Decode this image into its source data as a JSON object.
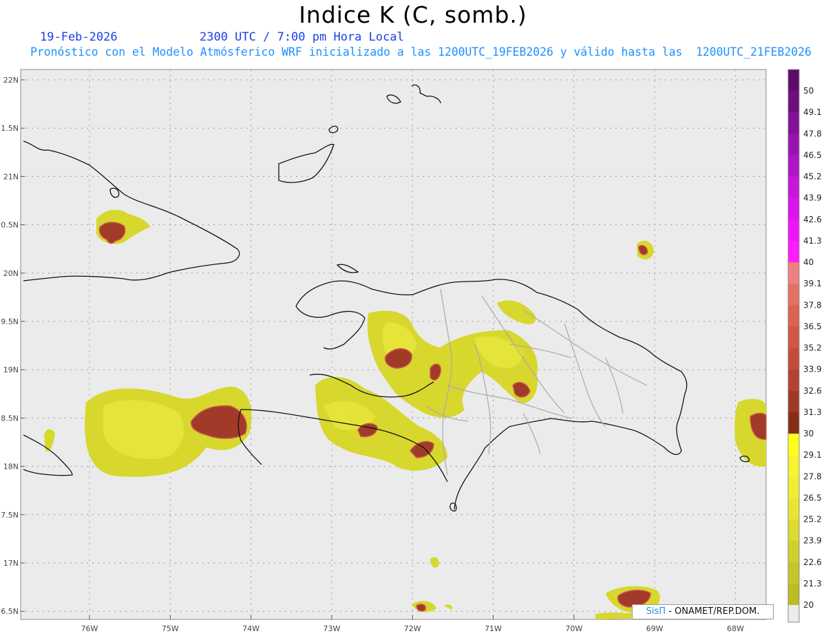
{
  "header": {
    "title": "Indice K (C, somb.)",
    "date": "19-Feb-2026",
    "time": "2300 UTC / 7:00 pm Hora Local",
    "forecast_line": "Pronóstico con el Modelo Atmósferico WRF inicializado a las 1200UTC_19FEB2026 y válido hasta las  1200UTC_21FEB2026"
  },
  "map": {
    "lat_labels": [
      "22N",
      "1.5N",
      "21N",
      "0.5N",
      "20N",
      "9.5N",
      "19N",
      "8.5N",
      "18N",
      "7.5N",
      "17N",
      "6.5N"
    ],
    "lon_labels": [
      "76W",
      "75W",
      "74W",
      "73W",
      "72W",
      "71W",
      "70W",
      "69W",
      "68W"
    ],
    "colors": {
      "land_bg": "#ebebeb",
      "coast": "#111111",
      "province": "#aaaaaa",
      "grid": "#999999"
    }
  },
  "colorbar": {
    "labels": [
      "50",
      "49.1",
      "47.8",
      "46.5",
      "45.2",
      "43.9",
      "42.6",
      "41.3",
      "40",
      "39.1",
      "37.8",
      "36.5",
      "35.2",
      "33.9",
      "32.6",
      "31.3",
      "30",
      "29.1",
      "27.8",
      "26.5",
      "25.2",
      "23.9",
      "22.6",
      "21.3",
      "20"
    ],
    "colors": [
      "#5e0a6a",
      "#700d80",
      "#850f98",
      "#9a12b0",
      "#b014c8",
      "#c814dc",
      "#dc14ec",
      "#f014fa",
      "#ff1cff",
      "#f08080",
      "#e67065",
      "#dc6252",
      "#d25646",
      "#c44c3c",
      "#b44232",
      "#a03828",
      "#862c18",
      "#ffff1e",
      "#f8f52c",
      "#f0ee32",
      "#e8e632",
      "#dcdc2c",
      "#d0d02a",
      "#c6c626",
      "#bcbc20"
    ]
  },
  "credit": {
    "logo": "SisΠ",
    "text": " - ONAMET/REP.DOM."
  }
}
